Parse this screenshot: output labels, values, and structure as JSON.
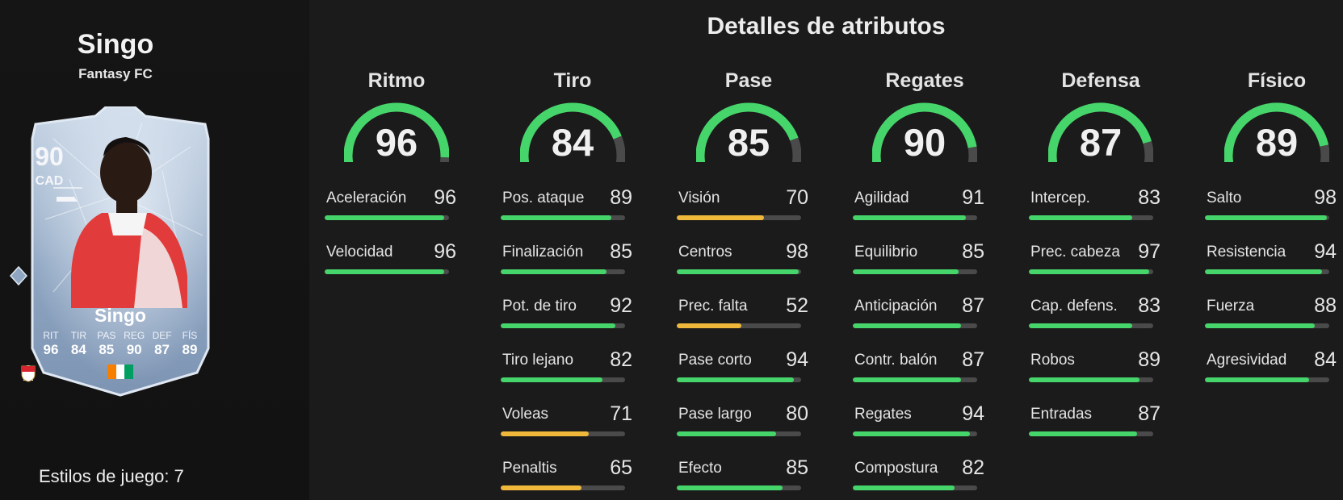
{
  "player": {
    "name": "Singo",
    "club": "Fantasy FC",
    "rating": "90",
    "position": "CAD",
    "card_name": "Singo",
    "card_stats": [
      {
        "label": "RIT",
        "value": "96"
      },
      {
        "label": "TIR",
        "value": "84"
      },
      {
        "label": "PAS",
        "value": "85"
      },
      {
        "label": "REG",
        "value": "90"
      },
      {
        "label": "DEF",
        "value": "87"
      },
      {
        "label": "FÍS",
        "value": "89"
      }
    ],
    "playstyles": "Estilos de juego: 7"
  },
  "colors": {
    "high": "#45d56a",
    "mid": "#f0b83a",
    "track": "#4a4a4a",
    "card": "#a9bdd3"
  },
  "title": "Detalles de atributos",
  "categories": [
    {
      "name": "Ritmo",
      "value": 96,
      "attributes": [
        {
          "label": "Aceleración",
          "value": 96
        },
        {
          "label": "Velocidad",
          "value": 96
        }
      ]
    },
    {
      "name": "Tiro",
      "value": 84,
      "attributes": [
        {
          "label": "Pos. ataque",
          "value": 89
        },
        {
          "label": "Finalización",
          "value": 85
        },
        {
          "label": "Pot. de tiro",
          "value": 92
        },
        {
          "label": "Tiro lejano",
          "value": 82
        },
        {
          "label": "Voleas",
          "value": 71
        },
        {
          "label": "Penaltis",
          "value": 65
        }
      ]
    },
    {
      "name": "Pase",
      "value": 85,
      "attributes": [
        {
          "label": "Visión",
          "value": 70
        },
        {
          "label": "Centros",
          "value": 98
        },
        {
          "label": "Prec. falta",
          "value": 52
        },
        {
          "label": "Pase corto",
          "value": 94
        },
        {
          "label": "Pase largo",
          "value": 80
        },
        {
          "label": "Efecto",
          "value": 85
        }
      ]
    },
    {
      "name": "Regates",
      "value": 90,
      "attributes": [
        {
          "label": "Agilidad",
          "value": 91
        },
        {
          "label": "Equilibrio",
          "value": 85
        },
        {
          "label": "Anticipación",
          "value": 87
        },
        {
          "label": "Contr. balón",
          "value": 87
        },
        {
          "label": "Regates",
          "value": 94
        },
        {
          "label": "Compostura",
          "value": 82
        }
      ]
    },
    {
      "name": "Defensa",
      "value": 87,
      "attributes": [
        {
          "label": "Intercep.",
          "value": 83
        },
        {
          "label": "Prec. cabeza",
          "value": 97
        },
        {
          "label": "Cap. defens.",
          "value": 83
        },
        {
          "label": "Robos",
          "value": 89
        },
        {
          "label": "Entradas",
          "value": 87
        }
      ]
    },
    {
      "name": "Físico",
      "value": 89,
      "attributes": [
        {
          "label": "Salto",
          "value": 98
        },
        {
          "label": "Resistencia",
          "value": 94
        },
        {
          "label": "Fuerza",
          "value": 88
        },
        {
          "label": "Agresividad",
          "value": 84
        }
      ]
    }
  ]
}
